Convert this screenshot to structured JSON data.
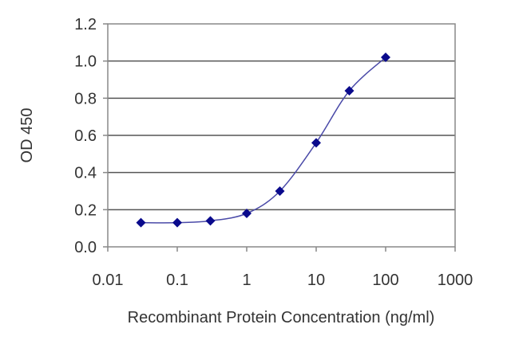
{
  "chart_data": {
    "type": "scatter",
    "title": "",
    "xlabel": "Recombinant Protein Concentration (ng/ml)",
    "ylabel": "OD 450",
    "x_scale": "log",
    "xlim": [
      0.01,
      1000
    ],
    "ylim": [
      0,
      1.2
    ],
    "x_ticks": [
      "0.01",
      "0.1",
      "1",
      "10",
      "100",
      "1000"
    ],
    "y_ticks": [
      "0.0",
      "0.2",
      "0.4",
      "0.6",
      "0.8",
      "1.0",
      "1.2"
    ],
    "grid": "horizontal",
    "legend": "none",
    "series": [
      {
        "x": [
          0.03,
          0.1,
          0.3,
          1,
          3,
          10,
          30,
          100
        ],
        "y": [
          0.13,
          0.13,
          0.14,
          0.18,
          0.3,
          0.56,
          0.84,
          1.02
        ],
        "fit_curve": true
      }
    ],
    "colors": {
      "line": "#4a4aa8",
      "marker": "#0a0a8c",
      "grid": "#555555",
      "frame": "#888888"
    }
  }
}
